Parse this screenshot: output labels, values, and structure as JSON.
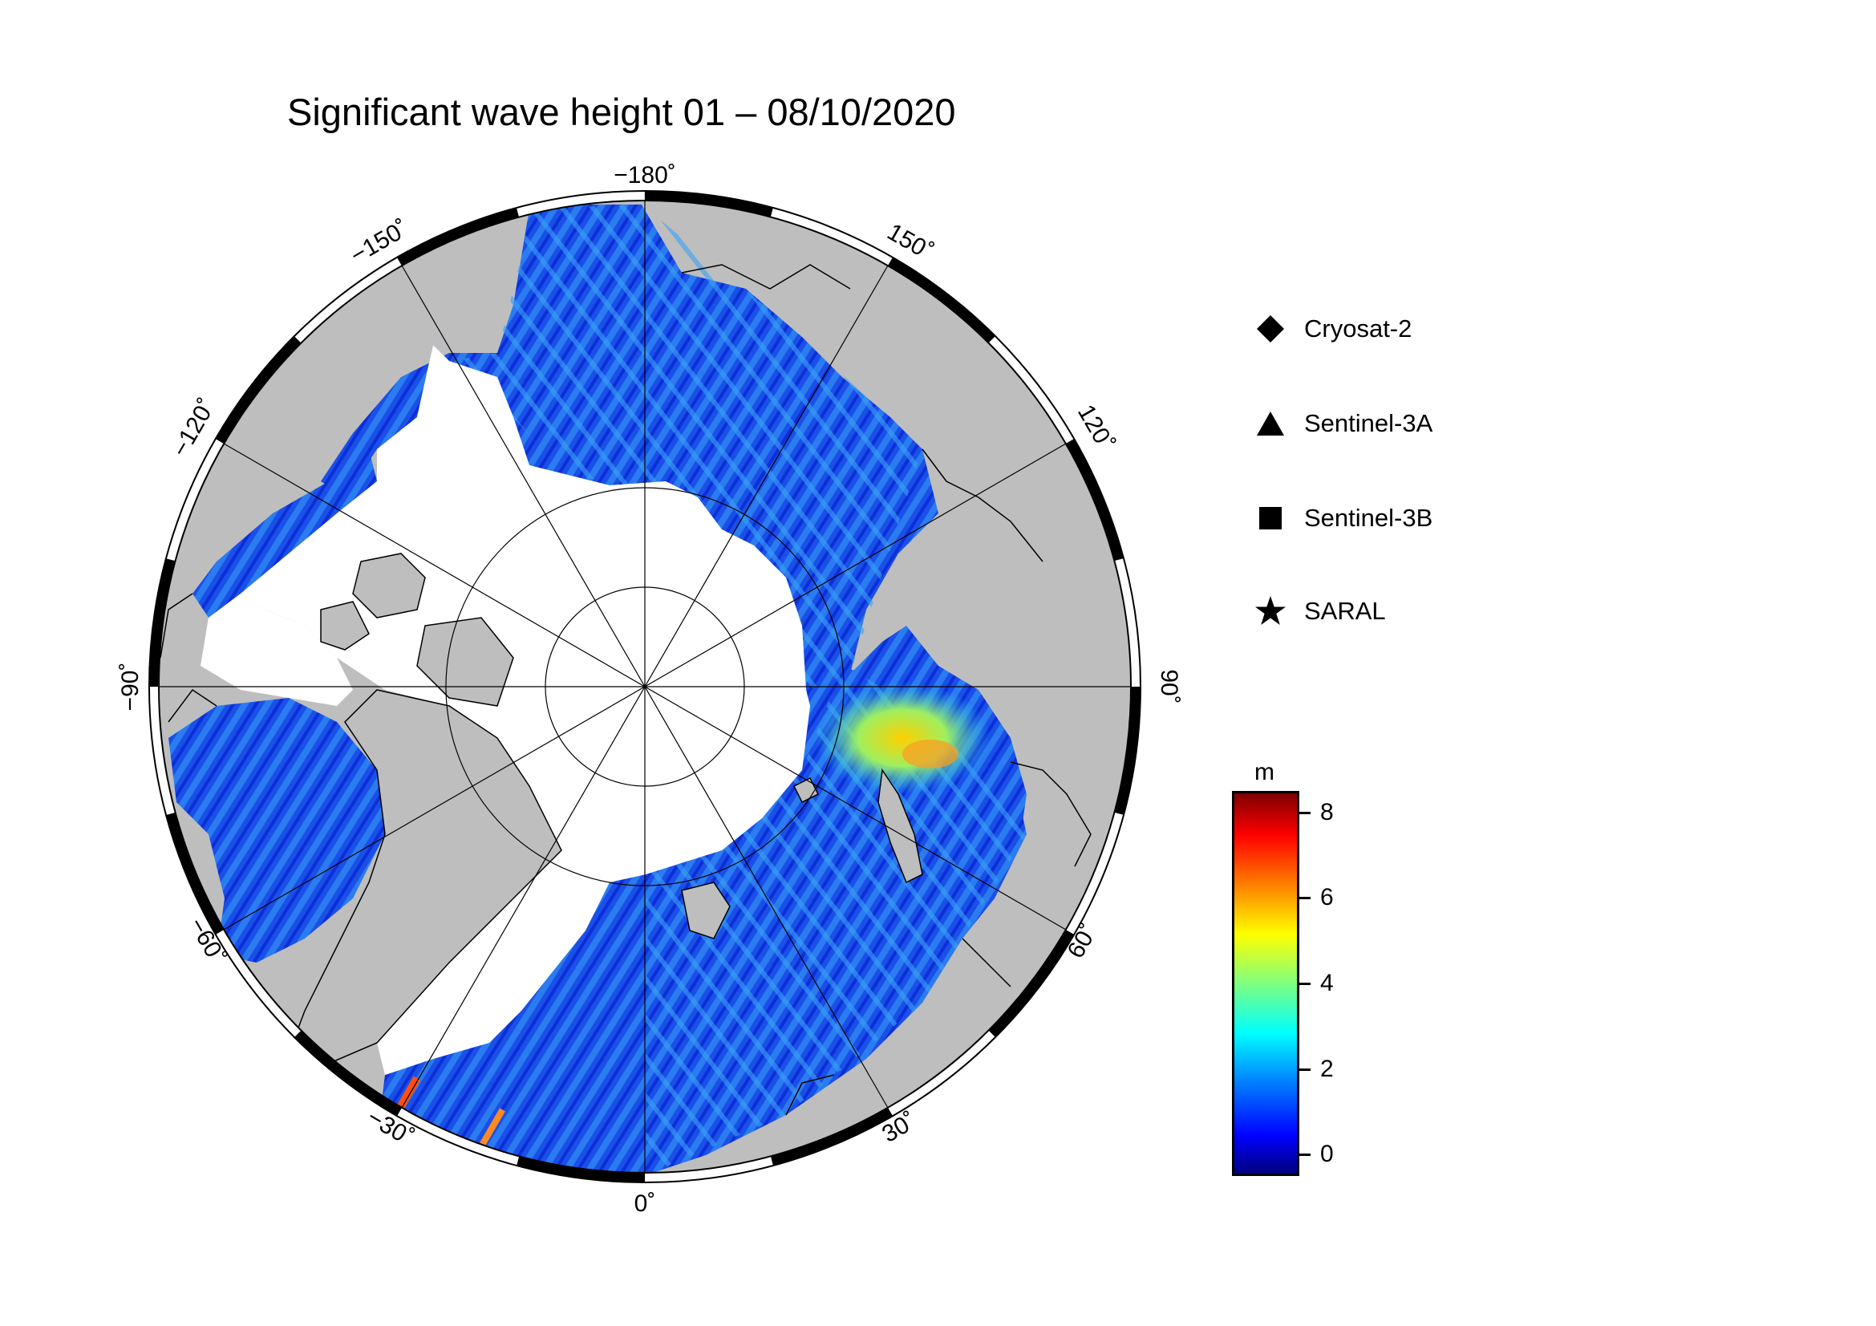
{
  "title": "Significant wave height 01 – 08/10/2020",
  "map": {
    "projection": "north-polar-stereographic",
    "longitude_labels": [
      {
        "lon": -180,
        "text": "−180˚"
      },
      {
        "lon": 150,
        "text": "150˚"
      },
      {
        "lon": 120,
        "text": "120˚"
      },
      {
        "lon": 90,
        "text": "90˚"
      },
      {
        "lon": 60,
        "text": "60˚"
      },
      {
        "lon": 30,
        "text": "30˚"
      },
      {
        "lon": 0,
        "text": "0˚"
      },
      {
        "lon": -30,
        "text": "−30˚"
      },
      {
        "lon": -60,
        "text": "−60˚"
      },
      {
        "lon": -90,
        "text": "−90˚"
      },
      {
        "lon": -120,
        "text": "−120˚"
      },
      {
        "lon": -150,
        "text": "−150˚"
      }
    ],
    "colors": {
      "land": "#bebebe",
      "sea_ice": "#ffffff",
      "coast": "#000000",
      "grid": "#000000"
    }
  },
  "legend": {
    "items": [
      {
        "symbol": "diamond-icon",
        "label": "Cryosat-2"
      },
      {
        "symbol": "triangle-icon",
        "label": "Sentinel-3A"
      },
      {
        "symbol": "square-icon",
        "label": "Sentinel-3B"
      },
      {
        "symbol": "star-icon",
        "label": "SARAL"
      }
    ]
  },
  "colorbar": {
    "unit": "m",
    "min": -0.5,
    "max": 8.5,
    "ticks": [
      "0",
      "2",
      "4",
      "6",
      "8"
    ],
    "colormap": [
      "#00007f",
      "#0000ff",
      "#007fff",
      "#00ffff",
      "#7fff7f",
      "#ffff00",
      "#ff7f00",
      "#ff0000",
      "#7f0000"
    ]
  }
}
